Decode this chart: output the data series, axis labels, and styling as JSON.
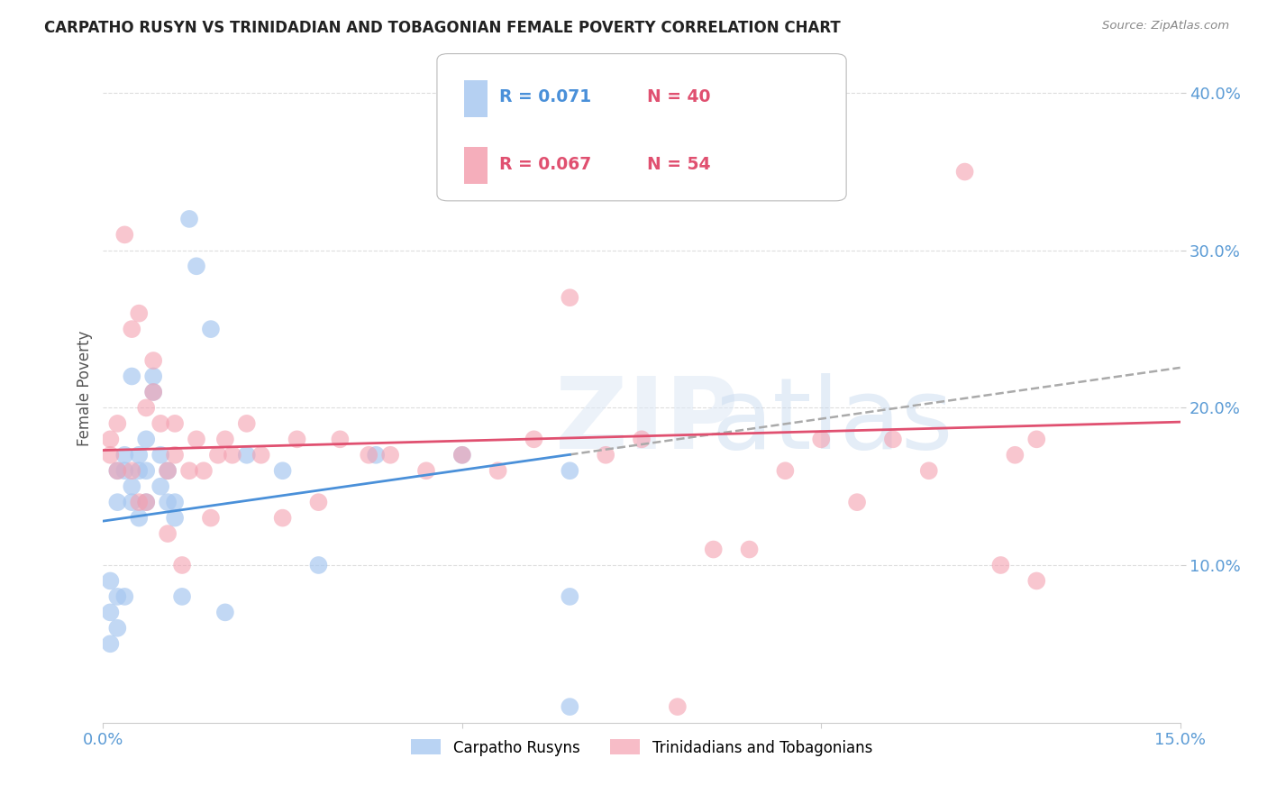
{
  "title": "CARPATHO RUSYN VS TRINIDADIAN AND TOBAGONIAN FEMALE POVERTY CORRELATION CHART",
  "source": "Source: ZipAtlas.com",
  "ylabel": "Female Poverty",
  "ytick_labels": [
    "10.0%",
    "20.0%",
    "30.0%",
    "40.0%"
  ],
  "ytick_values": [
    0.1,
    0.2,
    0.3,
    0.4
  ],
  "xlim": [
    0.0,
    0.15
  ],
  "ylim": [
    0.0,
    0.425
  ],
  "legend_labels": [
    "Carpatho Rusyns",
    "Trinidadians and Tobagonians"
  ],
  "r_blue": 0.071,
  "n_blue": 40,
  "r_pink": 0.067,
  "n_pink": 54,
  "color_blue": "#a8c8f0",
  "color_pink": "#f4a0b0",
  "color_blue_line": "#4a90d9",
  "color_pink_line": "#e05070",
  "color_axis_labels": "#5b9bd5",
  "blue_x": [
    0.001,
    0.001,
    0.001,
    0.002,
    0.002,
    0.002,
    0.002,
    0.003,
    0.003,
    0.003,
    0.004,
    0.004,
    0.004,
    0.005,
    0.005,
    0.005,
    0.006,
    0.006,
    0.006,
    0.007,
    0.007,
    0.008,
    0.008,
    0.009,
    0.009,
    0.01,
    0.01,
    0.011,
    0.012,
    0.013,
    0.015,
    0.017,
    0.02,
    0.025,
    0.03,
    0.038,
    0.05,
    0.065,
    0.065,
    0.065
  ],
  "blue_y": [
    0.05,
    0.07,
    0.09,
    0.06,
    0.08,
    0.14,
    0.16,
    0.08,
    0.16,
    0.17,
    0.14,
    0.15,
    0.22,
    0.13,
    0.16,
    0.17,
    0.14,
    0.16,
    0.18,
    0.21,
    0.22,
    0.15,
    0.17,
    0.14,
    0.16,
    0.13,
    0.14,
    0.08,
    0.32,
    0.29,
    0.25,
    0.07,
    0.17,
    0.16,
    0.1,
    0.17,
    0.17,
    0.16,
    0.08,
    0.01
  ],
  "pink_x": [
    0.001,
    0.001,
    0.002,
    0.002,
    0.003,
    0.004,
    0.004,
    0.005,
    0.005,
    0.006,
    0.006,
    0.007,
    0.007,
    0.008,
    0.009,
    0.009,
    0.01,
    0.01,
    0.011,
    0.012,
    0.013,
    0.014,
    0.015,
    0.016,
    0.017,
    0.018,
    0.02,
    0.022,
    0.025,
    0.027,
    0.03,
    0.033,
    0.037,
    0.04,
    0.045,
    0.05,
    0.055,
    0.06,
    0.065,
    0.07,
    0.075,
    0.08,
    0.085,
    0.09,
    0.095,
    0.1,
    0.105,
    0.11,
    0.115,
    0.12,
    0.125,
    0.127,
    0.13,
    0.13
  ],
  "pink_y": [
    0.17,
    0.18,
    0.16,
    0.19,
    0.31,
    0.16,
    0.25,
    0.14,
    0.26,
    0.14,
    0.2,
    0.21,
    0.23,
    0.19,
    0.12,
    0.16,
    0.17,
    0.19,
    0.1,
    0.16,
    0.18,
    0.16,
    0.13,
    0.17,
    0.18,
    0.17,
    0.19,
    0.17,
    0.13,
    0.18,
    0.14,
    0.18,
    0.17,
    0.17,
    0.16,
    0.17,
    0.16,
    0.18,
    0.27,
    0.17,
    0.18,
    0.01,
    0.11,
    0.11,
    0.16,
    0.18,
    0.14,
    0.18,
    0.16,
    0.35,
    0.1,
    0.17,
    0.09,
    0.18
  ],
  "blue_line_start_x": 0.0,
  "blue_line_end_x": 0.065,
  "pink_line_start_x": 0.0,
  "pink_line_end_x": 0.15,
  "dash_line_start_x": 0.065,
  "dash_line_end_x": 0.15
}
